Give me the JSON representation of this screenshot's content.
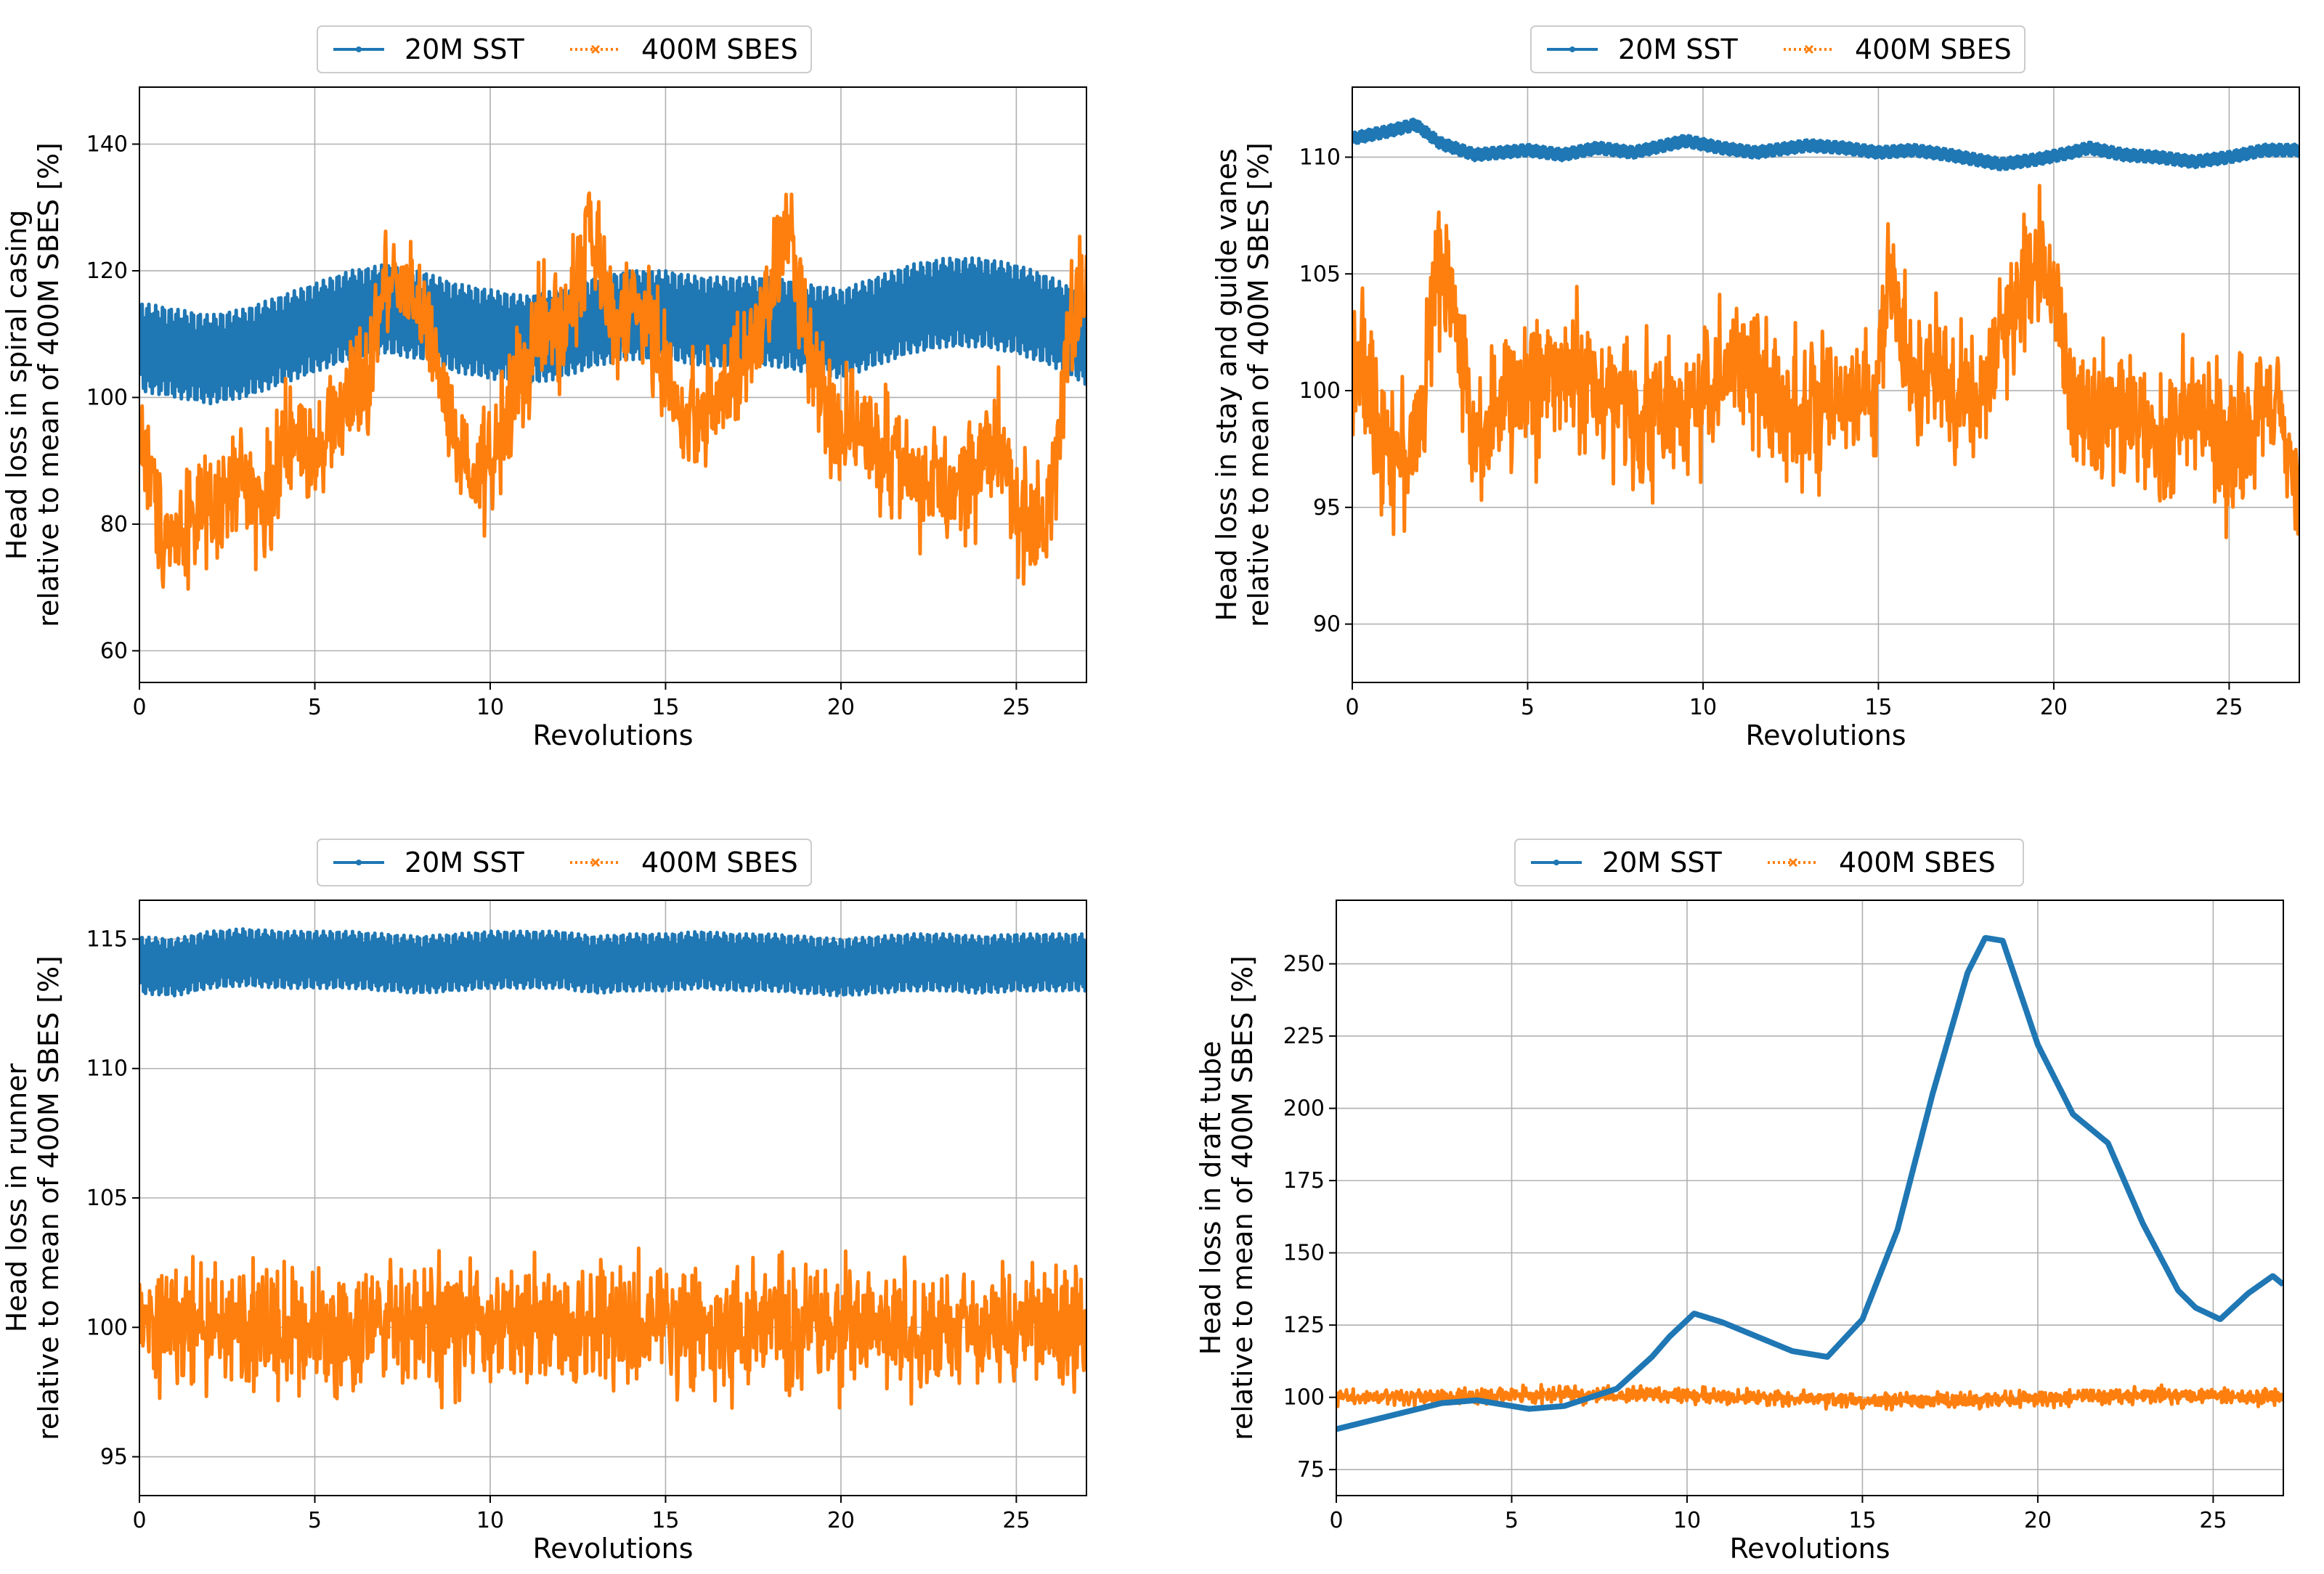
{
  "colors": {
    "sst": "#1f77b4",
    "sbes": "#ff7f0e",
    "grid": "#b0b0b0",
    "frame": "#000000"
  },
  "chart_data": [
    {
      "type": "line",
      "xlabel": "Revolutions",
      "ylabel": [
        "Head loss in spiral casing",
        "relative to mean of 400M SBES [%]"
      ],
      "xlim": [
        0,
        27
      ],
      "ylim": [
        55,
        149
      ],
      "xticks": [
        0,
        5,
        10,
        15,
        20,
        25
      ],
      "yticks": [
        60,
        80,
        100,
        120,
        140
      ],
      "legend": [
        "20M SST",
        "400M SBES"
      ],
      "series": [
        {
          "name": "20M SST",
          "style": "band",
          "x": [
            0,
            1,
            2,
            3,
            4,
            5,
            6,
            7,
            8,
            9,
            10,
            11,
            12,
            13,
            14,
            15,
            16,
            17,
            18,
            19,
            20,
            21,
            22,
            23,
            24,
            25,
            26,
            27
          ],
          "values": [
            108,
            107,
            106,
            107,
            109,
            111,
            113,
            114,
            113,
            111,
            110,
            109,
            110,
            112,
            113,
            113,
            112,
            112,
            112,
            111,
            110,
            112,
            114,
            115,
            115,
            114,
            112,
            109
          ],
          "amplitude": 7
        },
        {
          "name": "400M SBES",
          "style": "noisy",
          "x": [
            0,
            0.3,
            0.6,
            1,
            1.5,
            2,
            2.5,
            3,
            3.5,
            4,
            4.5,
            5,
            5.5,
            6,
            6.5,
            7,
            7.5,
            8,
            8.5,
            9,
            9.5,
            10,
            10.5,
            11,
            11.5,
            12,
            12.5,
            12.8,
            13.2,
            13.5,
            14,
            14.5,
            15,
            15.5,
            16,
            16.5,
            17,
            17.5,
            18,
            18.5,
            19,
            19.5,
            20,
            20.5,
            21,
            21.5,
            22,
            22.5,
            23,
            23.5,
            24,
            24.5,
            25,
            25.5,
            26,
            26.5,
            27
          ],
          "values": [
            95,
            88,
            80,
            78,
            82,
            80,
            84,
            88,
            82,
            90,
            94,
            92,
            96,
            100,
            102,
            118,
            120,
            114,
            104,
            92,
            86,
            90,
            98,
            104,
            112,
            110,
            118,
            128,
            118,
            112,
            114,
            112,
            104,
            96,
            98,
            100,
            102,
            108,
            116,
            128,
            112,
            100,
            94,
            98,
            92,
            90,
            88,
            86,
            84,
            86,
            90,
            94,
            82,
            80,
            84,
            110,
            118
          ],
          "amplitude": 12
        }
      ]
    },
    {
      "type": "line",
      "xlabel": "Revolutions",
      "ylabel": [
        "Head loss in stay and guide vanes",
        "relative to mean of 400M SBES [%]"
      ],
      "xlim": [
        0,
        27
      ],
      "ylim": [
        87.5,
        113
      ],
      "xticks": [
        0,
        5,
        10,
        15,
        20,
        25
      ],
      "yticks": [
        90,
        95,
        100,
        105,
        110
      ],
      "legend": [
        "20M SST",
        "400M SBES"
      ],
      "series": [
        {
          "name": "20M SST",
          "style": "band",
          "x": [
            0,
            1,
            1.8,
            2.5,
            3.5,
            5,
            6,
            7,
            8,
            9.5,
            10.5,
            11.5,
            13,
            14,
            15,
            16,
            17,
            18.5,
            19.5,
            20.5,
            21,
            22,
            23,
            24,
            25,
            26,
            27
          ],
          "values": [
            110.8,
            111.1,
            111.4,
            110.6,
            110.1,
            110.3,
            110.1,
            110.4,
            110.2,
            110.7,
            110.4,
            110.2,
            110.5,
            110.4,
            110.2,
            110.3,
            110.1,
            109.7,
            109.9,
            110.2,
            110.4,
            110.1,
            110.0,
            109.8,
            110.0,
            110.3,
            110.3
          ],
          "amplitude": 0.25
        },
        {
          "name": "400M SBES",
          "style": "noisy",
          "x": [
            0,
            0.5,
            1,
            1.5,
            2,
            2.3,
            2.7,
            3,
            3.5,
            4,
            5,
            6,
            7,
            8,
            9,
            10,
            11,
            12,
            13,
            14,
            15,
            15.3,
            15.6,
            16,
            17,
            18,
            19,
            19.5,
            20,
            20.5,
            21,
            22,
            23,
            23.5,
            24,
            25,
            25.5,
            26,
            26.5,
            27
          ],
          "values": [
            102,
            100,
            98,
            97,
            99,
            104,
            106,
            102,
            98,
            99,
            100,
            101,
            100,
            99,
            99,
            100,
            101,
            100,
            99,
            99,
            100,
            106,
            102,
            101,
            100,
            100,
            104,
            106,
            105,
            100,
            99,
            99,
            98,
            98,
            100,
            97,
            98,
            100,
            99,
            95
          ],
          "amplitude": 4
        }
      ]
    },
    {
      "type": "line",
      "xlabel": "Revolutions",
      "ylabel": [
        "Head loss in runner",
        "relative to mean of 400M SBES [%]"
      ],
      "xlim": [
        0,
        27
      ],
      "ylim": [
        93.5,
        116.5
      ],
      "xticks": [
        0,
        5,
        10,
        15,
        20,
        25
      ],
      "yticks": [
        95,
        100,
        105,
        110,
        115
      ],
      "legend": [
        "20M SST",
        "400M SBES"
      ],
      "series": [
        {
          "name": "20M SST",
          "style": "band",
          "x": [
            0,
            1,
            2,
            3,
            4,
            5,
            6,
            7,
            8,
            9,
            10,
            11,
            12,
            13,
            14,
            15,
            16,
            17,
            18,
            19,
            20,
            21,
            22,
            23,
            24,
            25,
            26,
            27
          ],
          "values": [
            114,
            113.9,
            114.2,
            114.3,
            114.2,
            114.2,
            114.2,
            114.1,
            114.0,
            114.1,
            114.2,
            114.2,
            114.2,
            114.0,
            114.1,
            114.1,
            114.2,
            114.1,
            114.1,
            114.0,
            113.9,
            114.0,
            114.1,
            114.1,
            114.0,
            114.1,
            114.1,
            114.1
          ],
          "amplitude": 1.1
        },
        {
          "name": "400M SBES",
          "style": "noisy",
          "x": [
            0,
            3,
            6,
            9,
            12,
            15,
            18,
            21,
            24,
            27
          ],
          "values": [
            100,
            100,
            100,
            100,
            100,
            100,
            100,
            100,
            100,
            100
          ],
          "amplitude": 3.2
        }
      ]
    },
    {
      "type": "line",
      "xlabel": "Revolutions",
      "ylabel": [
        "Head loss in draft tube",
        "relative to mean of 400M SBES [%]"
      ],
      "xlim": [
        0,
        27
      ],
      "ylim": [
        66,
        272
      ],
      "xticks": [
        0,
        5,
        10,
        15,
        20,
        25
      ],
      "yticks": [
        75,
        100,
        125,
        150,
        175,
        200,
        225,
        250
      ],
      "legend": [
        "20M SST",
        "400M SBES"
      ],
      "series": [
        {
          "name": "20M SST",
          "style": "line",
          "x": [
            0,
            1,
            2,
            3,
            4,
            5,
            5.5,
            6.5,
            7,
            8,
            9,
            9.5,
            10.2,
            11,
            12,
            13,
            14,
            15,
            16,
            17,
            18,
            18.5,
            19,
            19.5,
            20,
            21,
            22,
            23,
            24,
            24.5,
            25.2,
            26,
            26.7,
            27
          ],
          "values": [
            89,
            92,
            95,
            98,
            99,
            97,
            96,
            97,
            99,
            103,
            114,
            121,
            129,
            126,
            121,
            116,
            114,
            127,
            158,
            205,
            247,
            259,
            258,
            240,
            222,
            198,
            188,
            160,
            137,
            131,
            127,
            136,
            142,
            139
          ],
          "amplitude": 0
        },
        {
          "name": "400M SBES",
          "style": "noisy",
          "x": [
            0,
            3,
            6,
            9,
            12,
            15,
            18,
            21,
            24,
            27
          ],
          "values": [
            100,
            100,
            101,
            101,
            100,
            99,
            99,
            100,
            101,
            100
          ],
          "amplitude": 3.5
        }
      ]
    }
  ]
}
